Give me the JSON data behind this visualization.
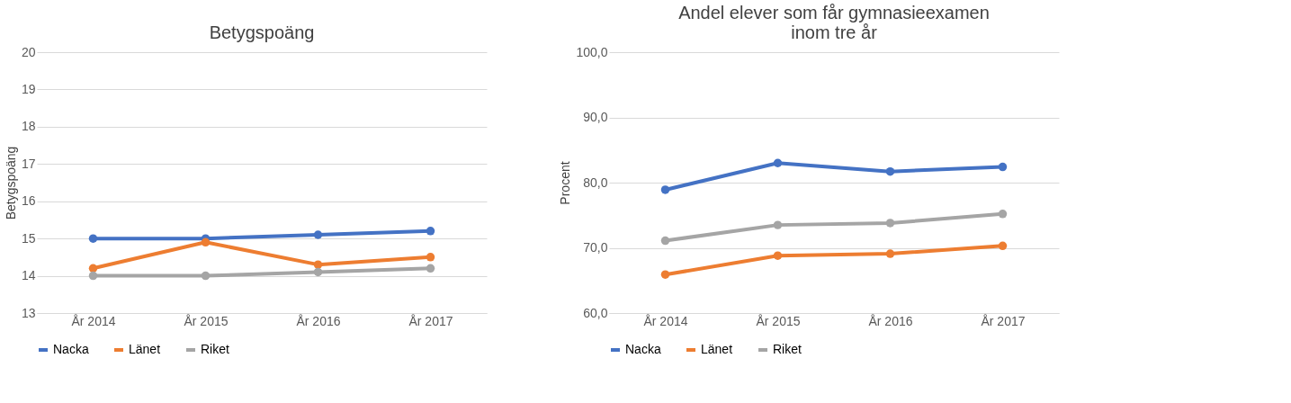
{
  "chart_data": [
    {
      "type": "line",
      "title": "Betygspoäng",
      "ylabel": "Betygspoäng",
      "categories": [
        "År 2014",
        "År 2015",
        "År 2016",
        "År 2017"
      ],
      "ylim": [
        13,
        20
      ],
      "yticks": [
        13,
        14,
        15,
        16,
        17,
        18,
        19,
        20
      ],
      "grid": "y",
      "legend": "bottom",
      "marker": "circle",
      "series": [
        {
          "name": "Nacka",
          "color": "#4472c4",
          "values": [
            15.0,
            15.0,
            15.1,
            15.2
          ]
        },
        {
          "name": "Länet",
          "color": "#ed7d31",
          "values": [
            14.2,
            14.9,
            14.3,
            14.5
          ]
        },
        {
          "name": "Riket",
          "color": "#a5a5a5",
          "values": [
            14.0,
            14.0,
            14.1,
            14.2
          ]
        }
      ]
    },
    {
      "type": "line",
      "title": "Andel elever som får gymnasieexamen inom tre år",
      "ylabel": "Procent",
      "categories": [
        "År 2014",
        "År 2015",
        "År 2016",
        "År 2017"
      ],
      "ylim": [
        60,
        100
      ],
      "yticks": [
        {
          "value": 60,
          "label": "60,0"
        },
        {
          "value": 70,
          "label": "70,0"
        },
        {
          "value": 80,
          "label": "80,0"
        },
        {
          "value": 90,
          "label": "90,0"
        },
        {
          "value": 100,
          "label": "100,0"
        }
      ],
      "grid": "y",
      "legend": "bottom",
      "marker": "circle",
      "series": [
        {
          "name": "Nacka",
          "color": "#4472c4",
          "values": [
            78.9,
            83.0,
            81.7,
            82.4
          ]
        },
        {
          "name": "Länet",
          "color": "#ed7d31",
          "values": [
            65.9,
            68.8,
            69.1,
            70.3
          ]
        },
        {
          "name": "Riket",
          "color": "#a5a5a5",
          "values": [
            71.1,
            73.5,
            73.8,
            75.2
          ]
        }
      ]
    }
  ]
}
